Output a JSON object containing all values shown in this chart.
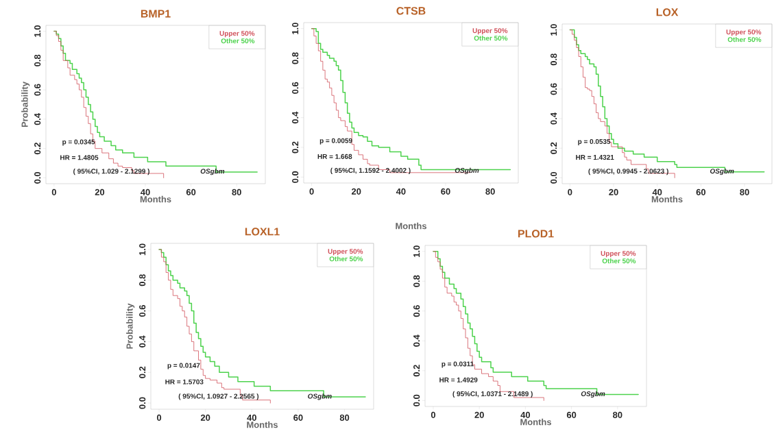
{
  "chart_data": [
    {
      "type": "step",
      "title": "BMP1",
      "xlabel": "Months",
      "ylabel": "Probability",
      "xlim": [
        -3.56,
        92.56
      ],
      "ylim": [
        -0.04,
        1.04
      ],
      "xticks": [
        0,
        20,
        40,
        60,
        80
      ],
      "yticks": [
        {
          "value": 0,
          "label": "0.0"
        },
        {
          "value": 0.2,
          "label": "0.2"
        },
        {
          "value": 0.4,
          "label": "0.4"
        },
        {
          "value": 0.6,
          "label": "0.6"
        },
        {
          "value": 0.8,
          "label": "0.8"
        },
        {
          "value": 1,
          "label": "1.0"
        }
      ],
      "legend": "top right",
      "annotations": [
        "p = 0.0345",
        "HR = 1.4805",
        "( 95%CI, 1.029 - 2.1299 )",
        "OSgbm"
      ],
      "series": [
        {
          "name": "Upper 50%",
          "color": "#d0505a",
          "x": [
            0,
            1,
            2,
            3,
            4,
            6,
            7,
            9,
            10,
            11,
            12,
            13,
            14,
            15,
            16,
            17,
            18,
            21,
            24,
            26,
            28,
            30,
            34,
            35,
            48
          ],
          "values": [
            1.0,
            0.97,
            0.93,
            0.87,
            0.8,
            0.75,
            0.7,
            0.67,
            0.64,
            0.6,
            0.55,
            0.48,
            0.42,
            0.37,
            0.3,
            0.25,
            0.2,
            0.17,
            0.13,
            0.1,
            0.08,
            0.07,
            0.05,
            0.03,
            0.0
          ]
        },
        {
          "name": "Other  50%",
          "color": "#4cd24c",
          "x": [
            0,
            1,
            2,
            3,
            4,
            5,
            7,
            8,
            10,
            11,
            12,
            13,
            14,
            15,
            16,
            17,
            18,
            19,
            20,
            22,
            25,
            27,
            30,
            35,
            41,
            49,
            71,
            89
          ],
          "values": [
            1.0,
            0.98,
            0.95,
            0.9,
            0.85,
            0.8,
            0.78,
            0.74,
            0.71,
            0.68,
            0.65,
            0.6,
            0.55,
            0.5,
            0.45,
            0.4,
            0.35,
            0.31,
            0.28,
            0.25,
            0.22,
            0.19,
            0.17,
            0.14,
            0.11,
            0.08,
            0.04,
            0.04
          ]
        }
      ]
    },
    {
      "type": "step",
      "title": "CTSB",
      "xlabel": "Months",
      "xlim": [
        -3.56,
        92.56
      ],
      "ylim": [
        -0.04,
        1.04
      ],
      "xticks": [
        0,
        20,
        40,
        60,
        80
      ],
      "yticks": [
        {
          "value": 0,
          "label": "0.0"
        },
        {
          "value": 0.2,
          "label": "0.2"
        },
        {
          "value": 0.4,
          "label": "0.4"
        },
        {
          "value": 0.6,
          "label": "0.6"
        },
        {
          "value": 0.8,
          "label": "0.8"
        },
        {
          "value": 1,
          "label": "1.0"
        }
      ],
      "legend": "top right",
      "annotations": [
        "p = 0.0059",
        "HR = 1.668",
        "( 95%CI, 1.1592 - 2.4002 )",
        "OSgbm"
      ],
      "series": [
        {
          "name": "Upper 50%",
          "color": "#d0505a",
          "x": [
            0,
            1,
            2,
            3,
            4,
            5,
            6,
            7,
            8,
            9,
            10,
            11,
            12,
            13,
            15,
            16,
            18,
            19,
            21,
            23,
            25,
            26,
            30,
            35,
            71
          ],
          "values": [
            1.0,
            0.95,
            0.9,
            0.85,
            0.78,
            0.72,
            0.66,
            0.64,
            0.6,
            0.55,
            0.5,
            0.45,
            0.4,
            0.38,
            0.34,
            0.31,
            0.22,
            0.18,
            0.15,
            0.12,
            0.09,
            0.08,
            0.05,
            0.03,
            0.03
          ]
        },
        {
          "name": "Other  50%",
          "color": "#4cd24c",
          "x": [
            0,
            2,
            3,
            4,
            5,
            7,
            8,
            10,
            11,
            12,
            13,
            14,
            15,
            16,
            17,
            18,
            19,
            21,
            23,
            25,
            27,
            30,
            35,
            40,
            43,
            48,
            49,
            89
          ],
          "values": [
            1.0,
            0.98,
            0.9,
            0.86,
            0.84,
            0.82,
            0.8,
            0.78,
            0.75,
            0.72,
            0.65,
            0.57,
            0.5,
            0.43,
            0.37,
            0.33,
            0.3,
            0.28,
            0.27,
            0.24,
            0.21,
            0.2,
            0.17,
            0.14,
            0.12,
            0.08,
            0.05,
            0.05
          ]
        }
      ]
    },
    {
      "type": "step",
      "title": "LOX",
      "xlabel": "Months",
      "xlim": [
        -3.56,
        92.56
      ],
      "ylim": [
        -0.04,
        1.04
      ],
      "xticks": [
        0,
        20,
        40,
        60,
        80
      ],
      "yticks": [
        {
          "value": 0,
          "label": "0.0"
        },
        {
          "value": 0.2,
          "label": "0.2"
        },
        {
          "value": 0.4,
          "label": "0.4"
        },
        {
          "value": 0.6,
          "label": "0.6"
        },
        {
          "value": 0.8,
          "label": "0.8"
        },
        {
          "value": 1,
          "label": "1.0"
        }
      ],
      "legend": "top right",
      "annotations": [
        "p = 0.0535",
        "HR = 1.4321",
        "( 95%CI, 0.9945 - 2.0623 )",
        "OSgbm"
      ],
      "series": [
        {
          "name": "Upper 50%",
          "color": "#d0505a",
          "x": [
            0,
            1,
            2,
            3,
            4,
            5,
            6,
            7,
            8,
            9,
            10,
            11,
            12,
            13,
            14,
            16,
            17,
            18,
            19,
            24,
            25,
            26,
            28,
            35,
            36,
            48
          ],
          "values": [
            1.0,
            0.97,
            0.93,
            0.88,
            0.82,
            0.75,
            0.68,
            0.61,
            0.6,
            0.59,
            0.55,
            0.5,
            0.44,
            0.4,
            0.38,
            0.35,
            0.3,
            0.24,
            0.21,
            0.17,
            0.14,
            0.12,
            0.09,
            0.06,
            0.03,
            0.0
          ]
        },
        {
          "name": "Other  50%",
          "color": "#4cd24c",
          "x": [
            0,
            2,
            3,
            4,
            5,
            7,
            8,
            9,
            11,
            12,
            13,
            14,
            15,
            16,
            17,
            18,
            19,
            20,
            22,
            25,
            29,
            34,
            40,
            48,
            49,
            71,
            89
          ],
          "values": [
            1.0,
            0.95,
            0.9,
            0.86,
            0.84,
            0.82,
            0.8,
            0.77,
            0.75,
            0.7,
            0.62,
            0.55,
            0.48,
            0.4,
            0.35,
            0.3,
            0.26,
            0.23,
            0.2,
            0.18,
            0.16,
            0.14,
            0.11,
            0.09,
            0.07,
            0.04,
            0.04
          ]
        }
      ]
    },
    {
      "type": "step",
      "title": "LOXL1",
      "xlabel": "Months",
      "ylabel": "Probability",
      "xlim": [
        -3.56,
        92.56
      ],
      "ylim": [
        -0.04,
        1.04
      ],
      "xticks": [
        0,
        20,
        40,
        60,
        80
      ],
      "yticks": [
        {
          "value": 0,
          "label": "0.0"
        },
        {
          "value": 0.2,
          "label": "0.2"
        },
        {
          "value": 0.4,
          "label": "0.4"
        },
        {
          "value": 0.6,
          "label": "0.6"
        },
        {
          "value": 0.8,
          "label": "0.8"
        },
        {
          "value": 1,
          "label": "1.0"
        }
      ],
      "legend": "top right",
      "annotations": [
        "p = 0.0147",
        "HR = 1.5703",
        "( 95%CI, 1.0927 - 2.2565 )",
        "OSgbm"
      ],
      "series": [
        {
          "name": "Upper 50%",
          "color": "#d0505a",
          "x": [
            0,
            1,
            2,
            3,
            4,
            5,
            6,
            8,
            9,
            10,
            11,
            12,
            13,
            14,
            15,
            17,
            18,
            19,
            20,
            22,
            25,
            27,
            28,
            35,
            36,
            48
          ],
          "values": [
            1.0,
            0.95,
            0.92,
            0.85,
            0.8,
            0.74,
            0.7,
            0.68,
            0.63,
            0.6,
            0.56,
            0.5,
            0.45,
            0.4,
            0.34,
            0.28,
            0.22,
            0.18,
            0.16,
            0.15,
            0.13,
            0.1,
            0.09,
            0.05,
            0.02,
            0.0
          ]
        },
        {
          "name": "Other  50%",
          "color": "#4cd24c",
          "x": [
            0,
            1,
            2,
            3,
            4,
            5,
            6,
            8,
            9,
            11,
            12,
            13,
            14,
            15,
            16,
            17,
            18,
            19,
            20,
            22,
            24,
            26,
            30,
            34,
            41,
            48,
            71,
            89
          ],
          "values": [
            1.0,
            0.98,
            0.95,
            0.9,
            0.86,
            0.83,
            0.8,
            0.78,
            0.75,
            0.73,
            0.7,
            0.65,
            0.6,
            0.52,
            0.46,
            0.42,
            0.37,
            0.33,
            0.3,
            0.27,
            0.24,
            0.2,
            0.17,
            0.14,
            0.11,
            0.08,
            0.04,
            0.04
          ]
        }
      ]
    },
    {
      "type": "step",
      "title": "PLOD1",
      "xlabel": "Months",
      "xlim": [
        -3.56,
        92.56
      ],
      "ylim": [
        -0.04,
        1.04
      ],
      "xticks": [
        0,
        20,
        40,
        60,
        80
      ],
      "yticks": [
        {
          "value": 0,
          "label": "0.0"
        },
        {
          "value": 0.2,
          "label": "0.2"
        },
        {
          "value": 0.4,
          "label": "0.4"
        },
        {
          "value": 0.6,
          "label": "0.6"
        },
        {
          "value": 0.8,
          "label": "0.8"
        },
        {
          "value": 1,
          "label": "1.0"
        }
      ],
      "legend": "top right",
      "annotations": [
        "p = 0.0311",
        "HR = 1.4929",
        "( 95%CI, 1.0371 - 2.1489 )",
        "OSgbm"
      ],
      "series": [
        {
          "name": "Upper 50%",
          "color": "#d0505a",
          "x": [
            0,
            1,
            2,
            3,
            4,
            5,
            6,
            8,
            9,
            10,
            11,
            12,
            13,
            14,
            15,
            16,
            17,
            18,
            21,
            24,
            26,
            28,
            29,
            35,
            48
          ],
          "values": [
            1.0,
            0.96,
            0.93,
            0.88,
            0.82,
            0.76,
            0.72,
            0.7,
            0.66,
            0.64,
            0.6,
            0.55,
            0.48,
            0.42,
            0.35,
            0.3,
            0.24,
            0.21,
            0.18,
            0.16,
            0.13,
            0.1,
            0.06,
            0.02,
            0.0
          ]
        },
        {
          "name": "Other  50%",
          "color": "#4cd24c",
          "x": [
            0,
            2,
            3,
            4,
            5,
            7,
            9,
            10,
            12,
            13,
            14,
            15,
            16,
            17,
            18,
            19,
            20,
            21,
            25,
            26,
            34,
            41,
            48,
            49,
            71,
            89
          ],
          "values": [
            1.0,
            0.95,
            0.9,
            0.86,
            0.82,
            0.78,
            0.75,
            0.72,
            0.68,
            0.63,
            0.58,
            0.52,
            0.48,
            0.43,
            0.38,
            0.33,
            0.29,
            0.26,
            0.22,
            0.19,
            0.16,
            0.13,
            0.1,
            0.08,
            0.04,
            0.04
          ]
        }
      ]
    }
  ]
}
